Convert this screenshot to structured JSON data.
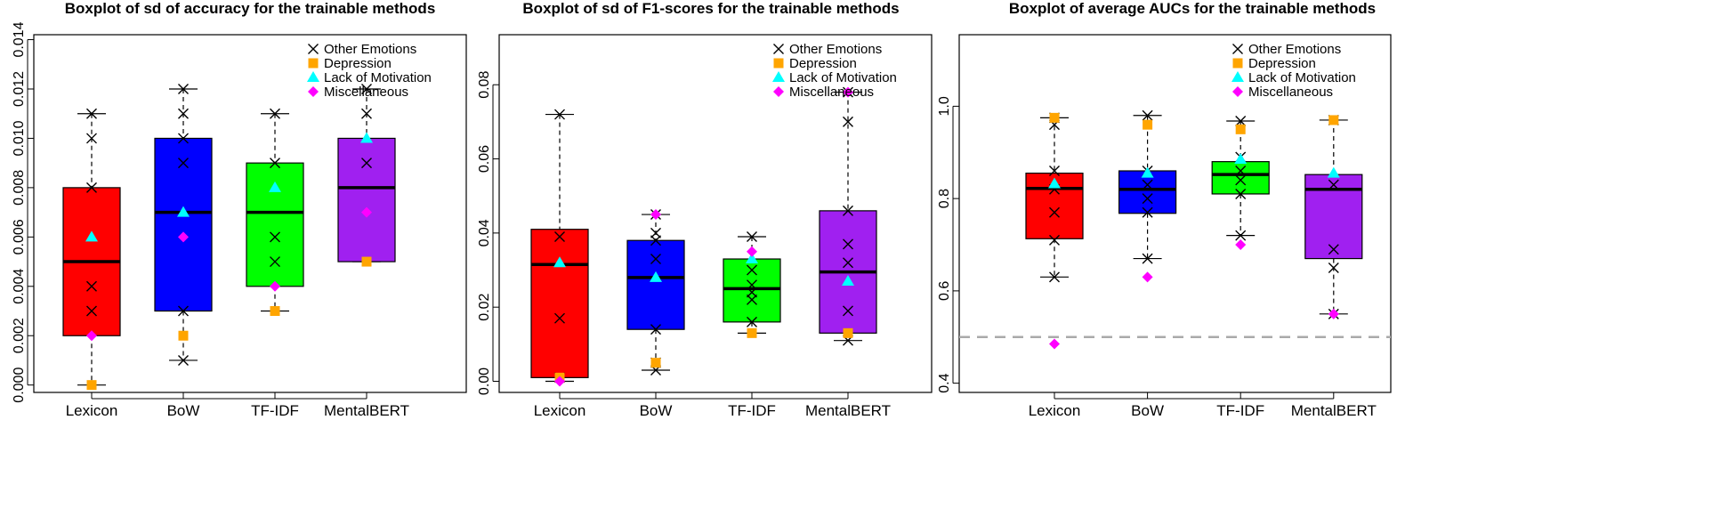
{
  "legend": {
    "entries": [
      {
        "label": "Other Emotions",
        "symbol": "x",
        "color": "#000000"
      },
      {
        "label": "Depression",
        "symbol": "square",
        "color": "#FFA500"
      },
      {
        "label": "Lack of Motivation",
        "symbol": "triangle",
        "color": "#00FFFF"
      },
      {
        "label": "Miscellaneous",
        "symbol": "diamond",
        "color": "#FF00FF"
      }
    ]
  },
  "chart_data": [
    {
      "type": "boxplot",
      "title": "Boxplot of sd of accuracy for the trainable methods",
      "categories": [
        "Lexicon",
        "BoW",
        "TF-IDF",
        "MentalBERT"
      ],
      "box_colors": [
        "#FF0000",
        "#0000FF",
        "#00FF00",
        "#A020F0"
      ],
      "ylim": [
        -0.0003,
        0.0142
      ],
      "yticks": [
        0,
        0.002,
        0.004,
        0.006,
        0.008,
        0.01,
        0.012,
        0.014
      ],
      "ytick_labels": [
        "0.000",
        "0.002",
        "0.004",
        "0.006",
        "0.008",
        "0.010",
        "0.012",
        "0.014"
      ],
      "boxes": [
        {
          "whisker_low": 0.0,
          "q1": 0.002,
          "median": 0.005,
          "q3": 0.008,
          "whisker_high": 0.011
        },
        {
          "whisker_low": 0.001,
          "q1": 0.003,
          "median": 0.007,
          "q3": 0.01,
          "whisker_high": 0.012
        },
        {
          "whisker_low": 0.003,
          "q1": 0.004,
          "median": 0.007,
          "q3": 0.009,
          "whisker_high": 0.011
        },
        {
          "whisker_low": 0.005,
          "q1": 0.005,
          "median": 0.008,
          "q3": 0.01,
          "whisker_high": 0.012
        }
      ],
      "series": [
        {
          "name": "Other Emotions",
          "values": [
            [
              0.011,
              0.01,
              0.008,
              0.004,
              0.003
            ],
            [
              0.012,
              0.011,
              0.01,
              0.009,
              0.003,
              0.001
            ],
            [
              0.011,
              0.009,
              0.006,
              0.005
            ],
            [
              0.012,
              0.011,
              0.009
            ]
          ]
        },
        {
          "name": "Depression",
          "values": [
            [
              0.0
            ],
            [
              0.002
            ],
            [
              0.003
            ],
            [
              0.005
            ]
          ]
        },
        {
          "name": "Lack of Motivation",
          "values": [
            [
              0.006
            ],
            [
              0.007
            ],
            [
              0.008
            ],
            [
              0.01
            ]
          ]
        },
        {
          "name": "Miscellaneous",
          "values": [
            [
              0.002
            ],
            [
              0.006
            ],
            [
              0.004
            ],
            [
              0.007
            ]
          ]
        }
      ],
      "reference_line": null
    },
    {
      "type": "boxplot",
      "title": "Boxplot of sd of F1-scores for the trainable methods",
      "categories": [
        "Lexicon",
        "BoW",
        "TF-IDF",
        "MentalBERT"
      ],
      "box_colors": [
        "#FF0000",
        "#0000FF",
        "#00FF00",
        "#A020F0"
      ],
      "ylim": [
        -0.003,
        0.0935
      ],
      "yticks": [
        0,
        0.02,
        0.04,
        0.06,
        0.08
      ],
      "ytick_labels": [
        "0.00",
        "0.02",
        "0.04",
        "0.06",
        "0.08"
      ],
      "boxes": [
        {
          "whisker_low": 0.0,
          "q1": 0.001,
          "median": 0.0315,
          "q3": 0.041,
          "whisker_high": 0.072
        },
        {
          "whisker_low": 0.003,
          "q1": 0.014,
          "median": 0.028,
          "q3": 0.038,
          "whisker_high": 0.045
        },
        {
          "whisker_low": 0.013,
          "q1": 0.016,
          "median": 0.025,
          "q3": 0.033,
          "whisker_high": 0.039
        },
        {
          "whisker_low": 0.011,
          "q1": 0.013,
          "median": 0.0295,
          "q3": 0.046,
          "whisker_high": 0.078
        }
      ],
      "series": [
        {
          "name": "Other Emotions",
          "values": [
            [
              0.072,
              0.039,
              0.017,
              0.001
            ],
            [
              0.045,
              0.04,
              0.038,
              0.033,
              0.014,
              0.005,
              0.003
            ],
            [
              0.039,
              0.03,
              0.026,
              0.024,
              0.022,
              0.016
            ],
            [
              0.078,
              0.07,
              0.046,
              0.037,
              0.032,
              0.019,
              0.011
            ]
          ]
        },
        {
          "name": "Depression",
          "values": [
            [
              0.001
            ],
            [
              0.005
            ],
            [
              0.013
            ],
            [
              0.013
            ]
          ]
        },
        {
          "name": "Lack of Motivation",
          "values": [
            [
              0.032
            ],
            [
              0.028
            ],
            [
              0.033
            ],
            [
              0.027
            ]
          ]
        },
        {
          "name": "Miscellaneous",
          "values": [
            [
              0.0
            ],
            [
              0.045
            ],
            [
              0.035
            ],
            [
              0.078
            ]
          ]
        }
      ],
      "reference_line": null
    },
    {
      "type": "boxplot",
      "title": "Boxplot of average AUCs for the trainable methods",
      "categories": [
        "Lexicon",
        "BoW",
        "TF-IDF",
        "MentalBERT"
      ],
      "box_colors": [
        "#FF0000",
        "#0000FF",
        "#00FF00",
        "#A020F0"
      ],
      "ylim": [
        0.38,
        1.155
      ],
      "yticks": [
        0.4,
        0.6,
        0.8,
        1.0
      ],
      "ytick_labels": [
        "0.4",
        "0.6",
        "0.8",
        "1.0"
      ],
      "boxes": [
        {
          "whisker_low": 0.63,
          "q1": 0.713,
          "median": 0.822,
          "q3": 0.855,
          "whisker_high": 0.975
        },
        {
          "whisker_low": 0.67,
          "q1": 0.768,
          "median": 0.82,
          "q3": 0.86,
          "whisker_high": 0.98
        },
        {
          "whisker_low": 0.72,
          "q1": 0.81,
          "median": 0.852,
          "q3": 0.88,
          "whisker_high": 0.968
        },
        {
          "whisker_low": 0.55,
          "q1": 0.67,
          "median": 0.82,
          "q3": 0.852,
          "whisker_high": 0.97
        }
      ],
      "series": [
        {
          "name": "Other Emotions",
          "values": [
            [
              0.975,
              0.96,
              0.86,
              0.82,
              0.77,
              0.71,
              0.63
            ],
            [
              0.98,
              0.86,
              0.83,
              0.8,
              0.77,
              0.67
            ],
            [
              0.968,
              0.89,
              0.86,
              0.84,
              0.81,
              0.72
            ],
            [
              0.97,
              0.83,
              0.69,
              0.65,
              0.55
            ]
          ]
        },
        {
          "name": "Depression",
          "values": [
            [
              0.975
            ],
            [
              0.96
            ],
            [
              0.95
            ],
            [
              0.97
            ]
          ]
        },
        {
          "name": "Lack of Motivation",
          "values": [
            [
              0.832
            ],
            [
              0.855
            ],
            [
              0.885
            ],
            [
              0.855
            ]
          ]
        },
        {
          "name": "Miscellaneous",
          "values": [
            [
              0.485
            ],
            [
              0.63
            ],
            [
              0.7
            ],
            [
              0.55
            ]
          ]
        }
      ],
      "reference_line": {
        "y": 0.5,
        "style": "dashed",
        "color": "#AAAAAA"
      }
    }
  ]
}
